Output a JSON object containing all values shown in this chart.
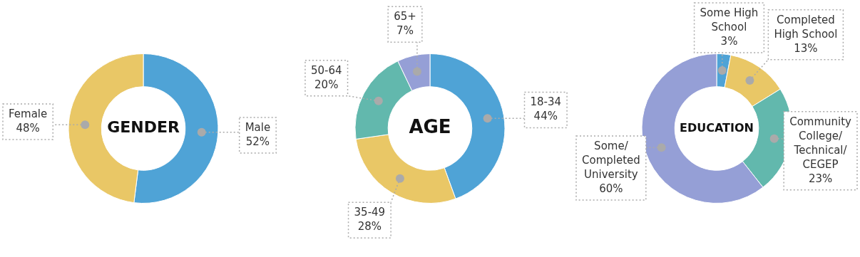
{
  "chart_data": [
    {
      "type": "donut",
      "title": "GENDER",
      "categories": [
        "Male",
        "Female"
      ],
      "values": [
        52,
        48
      ],
      "colors": [
        "#4fa3d6",
        "#e9c766"
      ],
      "value_labels": [
        "52%",
        "48%"
      ]
    },
    {
      "type": "donut",
      "title": "AGE",
      "categories": [
        "18-34",
        "35-49",
        "50-64",
        "65+"
      ],
      "values": [
        44,
        28,
        20,
        7
      ],
      "colors": [
        "#4fa3d6",
        "#e9c766",
        "#62b8ad",
        "#959fd6"
      ],
      "value_labels": [
        "44%",
        "28%",
        "20%",
        "7%"
      ]
    },
    {
      "type": "donut",
      "title": "EDUCATION",
      "categories": [
        "Some High School",
        "Completed High School",
        "Community College/Technical/CEGEP",
        "Some/Completed University"
      ],
      "values": [
        3,
        13,
        23,
        60
      ],
      "colors": [
        "#4fa3d6",
        "#e9c766",
        "#62b8ad",
        "#959fd6"
      ],
      "value_labels": [
        "3%",
        "13%",
        "23%",
        "60%"
      ]
    }
  ]
}
